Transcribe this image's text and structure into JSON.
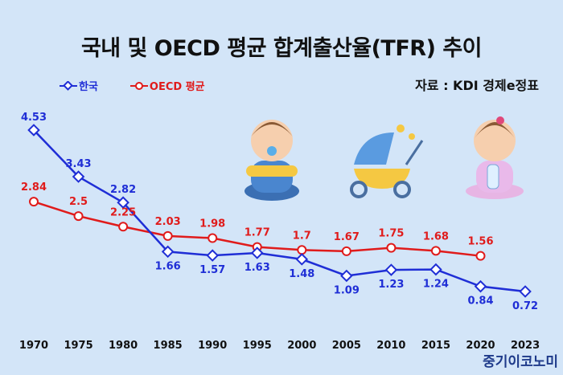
{
  "chart_data": {
    "type": "line",
    "title": "국내 및 OECD 평균 합계출산율(TFR) 추이",
    "source": "자료 : KDI 경제e정표",
    "logo": "중기이코노미",
    "categories": [
      "1970",
      "1975",
      "1980",
      "1985",
      "1990",
      "1995",
      "2000",
      "2005",
      "2010",
      "2015",
      "2020",
      "2023"
    ],
    "series": [
      {
        "name": "한국",
        "color": "#1f2ed6",
        "values": [
          4.53,
          3.43,
          2.82,
          1.66,
          1.57,
          1.63,
          1.48,
          1.09,
          1.23,
          1.24,
          0.84,
          0.72
        ],
        "labels": [
          "4.53",
          "3.43",
          "2.82",
          "1.66",
          "1.57",
          "1.63",
          "1.48",
          "1.09",
          "1.23",
          "1.24",
          "0.84",
          "0.72"
        ]
      },
      {
        "name": "OECD 평균",
        "color": "#e01b1b",
        "values": [
          2.84,
          2.5,
          2.25,
          2.03,
          1.98,
          1.77,
          1.7,
          1.67,
          1.75,
          1.68,
          1.56,
          null
        ],
        "labels": [
          "2.84",
          "2.5",
          "2.25",
          "2.03",
          "1.98",
          "1.77",
          "1.7",
          "1.67",
          "1.75",
          "1.68",
          "1.56",
          ""
        ]
      }
    ],
    "legend": "top-left",
    "grid": false
  }
}
